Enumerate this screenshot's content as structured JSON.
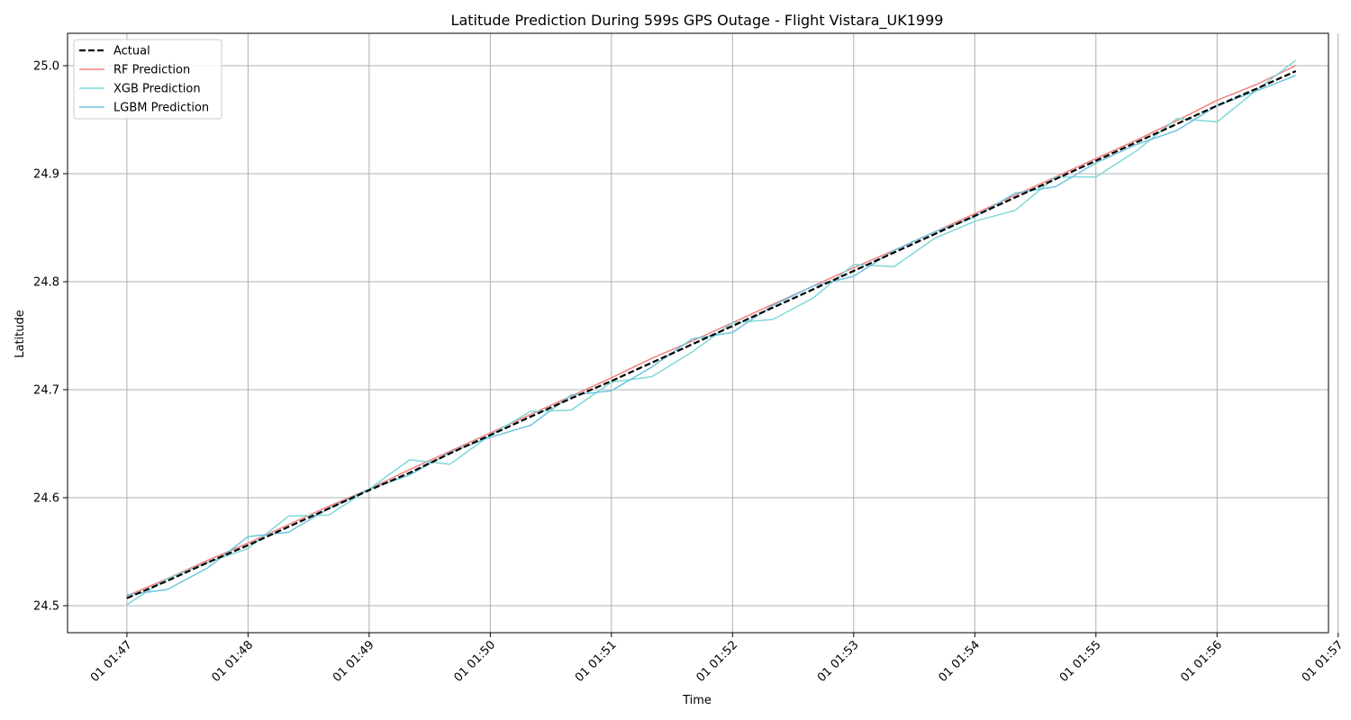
{
  "chart_data": {
    "type": "line",
    "title": "Latitude Prediction During 599s GPS Outage - Flight Vistara_UK1999",
    "xlabel": "Time",
    "ylabel": "Latitude",
    "xlim": [
      -0.49,
      9.92
    ],
    "ylim": [
      24.475,
      25.03
    ],
    "grid": true,
    "legend_position": "top-left",
    "x_ticks": [
      0,
      1,
      2,
      3,
      4,
      5,
      6,
      7,
      8,
      9,
      10
    ],
    "x_tick_labels": [
      "01 01:47",
      "01 01:48",
      "01 01:49",
      "01 01:50",
      "01 01:51",
      "01 01:52",
      "01 01:53",
      "01 01:54",
      "01 01:55",
      "01 01:56",
      "01 01:57"
    ],
    "y_ticks": [
      24.5,
      24.6,
      24.7,
      24.8,
      24.9,
      25.0
    ],
    "y_tick_labels": [
      "24.5",
      "24.6",
      "24.7",
      "24.8",
      "24.9",
      "25.0"
    ],
    "x": [
      0,
      0.333,
      0.667,
      1.0,
      1.333,
      1.667,
      2.0,
      2.333,
      2.667,
      3.0,
      3.333,
      3.667,
      4.0,
      4.333,
      4.667,
      5.0,
      5.333,
      5.667,
      6.0,
      6.333,
      6.667,
      7.0,
      7.333,
      7.667,
      8.0,
      8.333,
      8.667,
      9.0,
      9.333,
      9.65
    ],
    "series": [
      {
        "name": "Actual",
        "color": "#000000",
        "dashed": true,
        "width": 2.2,
        "values": [
          24.507,
          24.523,
          24.54,
          24.556,
          24.573,
          24.59,
          24.607,
          24.623,
          24.641,
          24.658,
          24.675,
          24.692,
          24.708,
          24.725,
          24.742,
          24.759,
          24.776,
          24.793,
          24.81,
          24.827,
          24.844,
          24.861,
          24.878,
          24.895,
          24.912,
          24.929,
          24.946,
          24.963,
          24.979,
          24.995
        ]
      },
      {
        "name": "RF Prediction",
        "color": "#f08080",
        "dashed": false,
        "width": 1.5,
        "values": [
          24.509,
          24.525,
          24.542,
          24.558,
          24.575,
          24.592,
          24.608,
          24.626,
          24.643,
          24.66,
          24.677,
          24.694,
          24.711,
          24.729,
          24.745,
          24.762,
          24.779,
          24.796,
          24.813,
          24.829,
          24.846,
          24.863,
          24.88,
          24.897,
          24.914,
          24.931,
          24.949,
          24.968,
          24.983,
          25.0
        ]
      },
      {
        "name": "XGB Prediction",
        "color": "#7fd8d8",
        "dashed": false,
        "width": 1.5,
        "values": [
          24.501,
          24.525,
          24.54,
          24.553,
          24.583,
          24.584,
          24.608,
          24.635,
          24.631,
          24.658,
          24.68,
          24.681,
          24.707,
          24.712,
          24.735,
          24.762,
          24.765,
          24.785,
          24.816,
          24.814,
          24.84,
          24.856,
          24.866,
          24.897,
          24.897,
          24.921,
          24.951,
          24.948,
          24.978,
          25.005
        ]
      },
      {
        "name": "LGBM Prediction",
        "color": "#6fc4de",
        "dashed": false,
        "width": 1.5,
        "values": [
          24.51,
          24.515,
          24.535,
          24.564,
          24.568,
          24.59,
          24.608,
          24.621,
          24.642,
          24.656,
          24.667,
          24.695,
          24.699,
          24.721,
          24.747,
          24.753,
          24.778,
          24.796,
          24.805,
          24.829,
          24.846,
          24.86,
          24.882,
          24.888,
          24.91,
          24.927,
          24.94,
          24.963,
          24.977,
          24.991
        ]
      }
    ]
  }
}
